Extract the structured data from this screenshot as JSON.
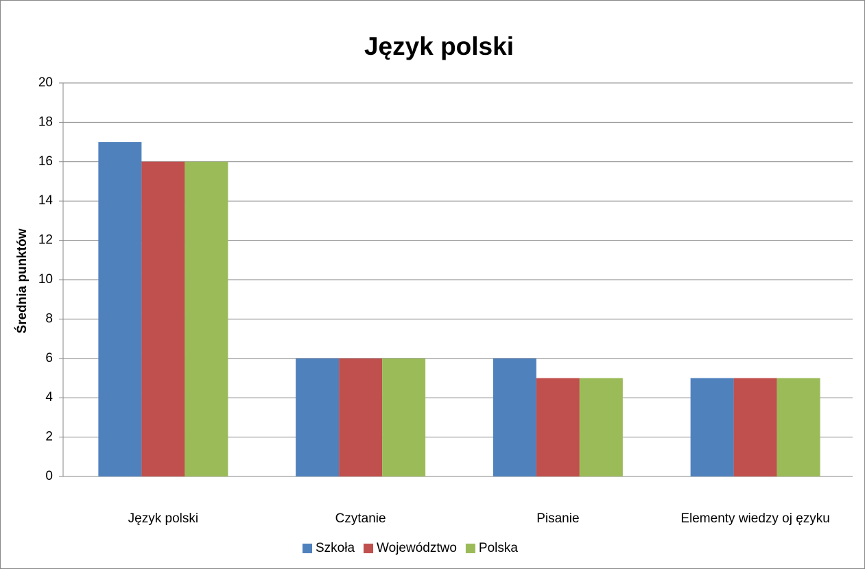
{
  "chart_data": {
    "type": "bar",
    "title": "Język polski",
    "y_label": "Średnia punktów",
    "categories": [
      "Język polski",
      "Czytanie",
      "Pisanie",
      "Elementy wiedzy oj ęzyku"
    ],
    "series": [
      {
        "name": "Szkoła",
        "color": "#4f81bd",
        "values": [
          17,
          6,
          6,
          5
        ]
      },
      {
        "name": "Województwo",
        "color": "#c0504d",
        "values": [
          16,
          6,
          5,
          5
        ]
      },
      {
        "name": "Polska",
        "color": "#9bbb59",
        "values": [
          16,
          6,
          5,
          5
        ]
      }
    ],
    "ylim": [
      0,
      20
    ],
    "yticks": [
      0,
      2,
      4,
      6,
      8,
      10,
      12,
      14,
      16,
      18,
      20
    ],
    "grid": true,
    "legend": "bottom"
  }
}
